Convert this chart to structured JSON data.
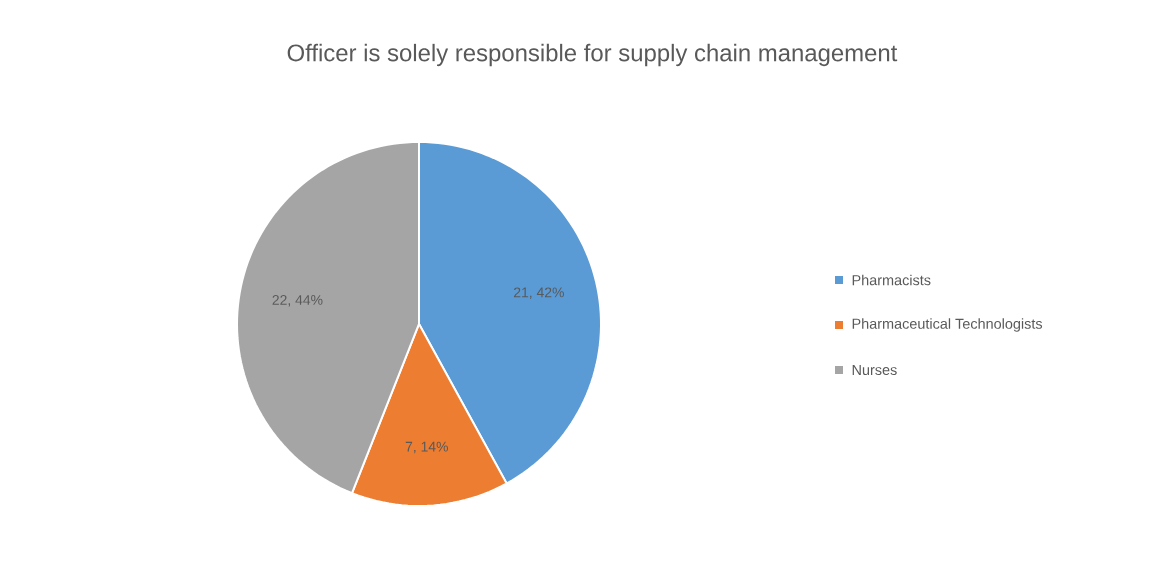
{
  "chart_data": {
    "type": "pie",
    "title": "Officer is solely responsible for supply chain management",
    "categories": [
      "Pharmacists",
      "Pharmaceutical Technologists",
      "Nurses"
    ],
    "values": [
      21,
      7,
      22
    ],
    "colors": [
      "#5b9bd5",
      "#ed7d31",
      "#a5a5a5"
    ],
    "value_labels": [
      "21, 42%",
      "7, 14%",
      "22, 44%"
    ],
    "legend": "right"
  }
}
